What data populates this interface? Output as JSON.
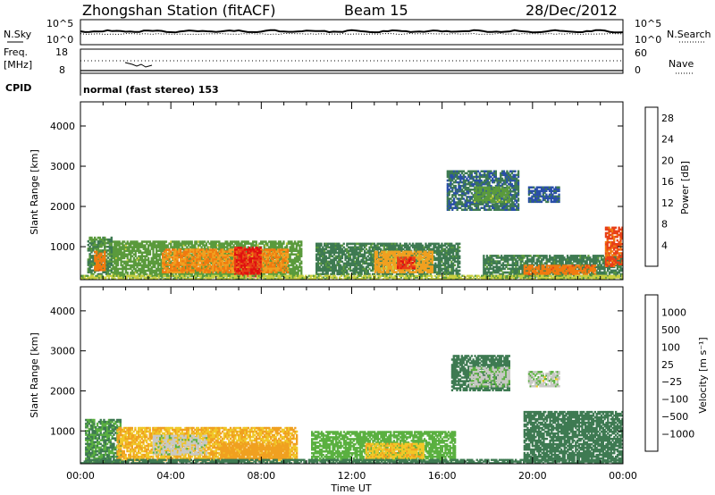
{
  "header": {
    "station": "Zhongshan Station (fitACF)",
    "beam": "Beam 15",
    "date": "28/Dec/2012"
  },
  "status_panel": {
    "nsky_label": "N.Sky",
    "nsearch_label": "N.Search",
    "noise_left_ticks": [
      "10^5",
      "10^0"
    ],
    "noise_right_ticks": [
      "10^5",
      "10^0"
    ],
    "freq_label_line1": "Freq.",
    "freq_label_line2": "[MHz]",
    "freq_ticks": [
      "18",
      "8"
    ],
    "nave_label": "Nave",
    "nave_ticks": [
      "60",
      "0"
    ],
    "cpid_label": "CPID",
    "cpid_text": "normal (fast stereo) 153"
  },
  "colors": {
    "power": [
      "#1a22dc",
      "#2a4fa8",
      "#3e7a52",
      "#5a9a3c",
      "#c8d040",
      "#f0a020",
      "#f07a10",
      "#e84018",
      "#e01010"
    ],
    "velocity": [
      "#e01010",
      "#f06a10",
      "#f0a020",
      "#f0c828",
      "#c8c8c4",
      "#5ab040",
      "#3e7a52",
      "#2a5aa8",
      "#1a30c0"
    ]
  },
  "chart_data": [
    {
      "type": "heatmap",
      "title": "Power",
      "xlabel": "Time UT",
      "ylabel": "Slant Range [km]",
      "x_ticks": [
        "00:00",
        "04:00",
        "08:00",
        "12:00",
        "16:00",
        "20:00",
        "00:00"
      ],
      "xlim_hours": [
        0,
        24
      ],
      "ylim_km": [
        180,
        4600
      ],
      "y_ticks": [
        1000,
        2000,
        3000,
        4000
      ],
      "colorbar": {
        "label": "Power [dB]",
        "ticks": [
          4,
          8,
          12,
          16,
          20,
          24,
          28
        ],
        "range": [
          0,
          30
        ]
      },
      "regions": [
        {
          "t0": 1.4,
          "t1": 9.8,
          "r0": 250,
          "r1": 1150,
          "value": 12
        },
        {
          "t0": 3.6,
          "t1": 9.2,
          "r0": 350,
          "r1": 950,
          "value": 20
        },
        {
          "t0": 6.8,
          "t1": 8.0,
          "r0": 250,
          "r1": 1000,
          "value": 27
        },
        {
          "t0": 0.3,
          "t1": 1.4,
          "r0": 300,
          "r1": 1250,
          "value": 10
        },
        {
          "t0": 0.6,
          "t1": 1.1,
          "r0": 400,
          "r1": 900,
          "value": 22
        },
        {
          "t0": 10.4,
          "t1": 16.8,
          "r0": 300,
          "r1": 1100,
          "value": 9
        },
        {
          "t0": 13.0,
          "t1": 15.6,
          "r0": 350,
          "r1": 900,
          "value": 18
        },
        {
          "t0": 14.0,
          "t1": 14.8,
          "r0": 450,
          "r1": 750,
          "value": 26
        },
        {
          "t0": 16.2,
          "t1": 19.4,
          "r0": 1900,
          "r1": 2900,
          "value": 7
        },
        {
          "t0": 17.4,
          "t1": 19.0,
          "r0": 2100,
          "r1": 2500,
          "value": 12
        },
        {
          "t0": 19.8,
          "t1": 21.2,
          "r0": 2100,
          "r1": 2500,
          "value": 6
        },
        {
          "t0": 17.8,
          "t1": 24.0,
          "r0": 250,
          "r1": 800,
          "value": 9
        },
        {
          "t0": 19.6,
          "t1": 22.8,
          "r0": 300,
          "r1": 550,
          "value": 22
        },
        {
          "t0": 23.2,
          "t1": 24.0,
          "r0": 500,
          "r1": 1500,
          "value": 24
        },
        {
          "t0": 0.0,
          "t1": 24.0,
          "r0": 180,
          "r1": 300,
          "value": 14
        }
      ]
    },
    {
      "type": "heatmap",
      "title": "Velocity",
      "xlabel": "Time UT",
      "ylabel": "Slant Range [km]",
      "x_ticks": [
        "00:00",
        "04:00",
        "08:00",
        "12:00",
        "16:00",
        "20:00",
        "00:00"
      ],
      "xlim_hours": [
        0,
        24
      ],
      "ylim_km": [
        180,
        4600
      ],
      "y_ticks": [
        1000,
        2000,
        3000,
        4000
      ],
      "colorbar": {
        "label": "Velocity [m s⁻¹]",
        "ticks": [
          "1000",
          "500",
          "100",
          "25",
          "−25",
          "−100",
          "−500",
          "−1000"
        ]
      },
      "regions": [
        {
          "t0": 0.2,
          "t1": 1.8,
          "r0": 200,
          "r1": 1300,
          "value": 100
        },
        {
          "t0": 1.6,
          "t1": 9.6,
          "r0": 250,
          "r1": 1100,
          "value": -100
        },
        {
          "t0": 3.2,
          "t1": 5.6,
          "r0": 400,
          "r1": 900,
          "value": 0
        },
        {
          "t0": 6.2,
          "t1": 9.2,
          "r0": 300,
          "r1": 700,
          "value": -300
        },
        {
          "t0": 10.2,
          "t1": 16.6,
          "r0": 250,
          "r1": 1000,
          "value": 60
        },
        {
          "t0": 12.6,
          "t1": 15.2,
          "r0": 300,
          "r1": 700,
          "value": -80
        },
        {
          "t0": 16.4,
          "t1": 19.0,
          "r0": 2000,
          "r1": 2900,
          "value": 150
        },
        {
          "t0": 17.2,
          "t1": 19.0,
          "r0": 2100,
          "r1": 2600,
          "value": 10
        },
        {
          "t0": 19.8,
          "t1": 21.2,
          "r0": 2100,
          "r1": 2500,
          "value": 8
        },
        {
          "t0": 19.6,
          "t1": 24.0,
          "r0": 250,
          "r1": 1500,
          "value": 300
        },
        {
          "t0": 0.0,
          "t1": 24.0,
          "r0": 180,
          "r1": 300,
          "value": 200
        }
      ]
    }
  ]
}
